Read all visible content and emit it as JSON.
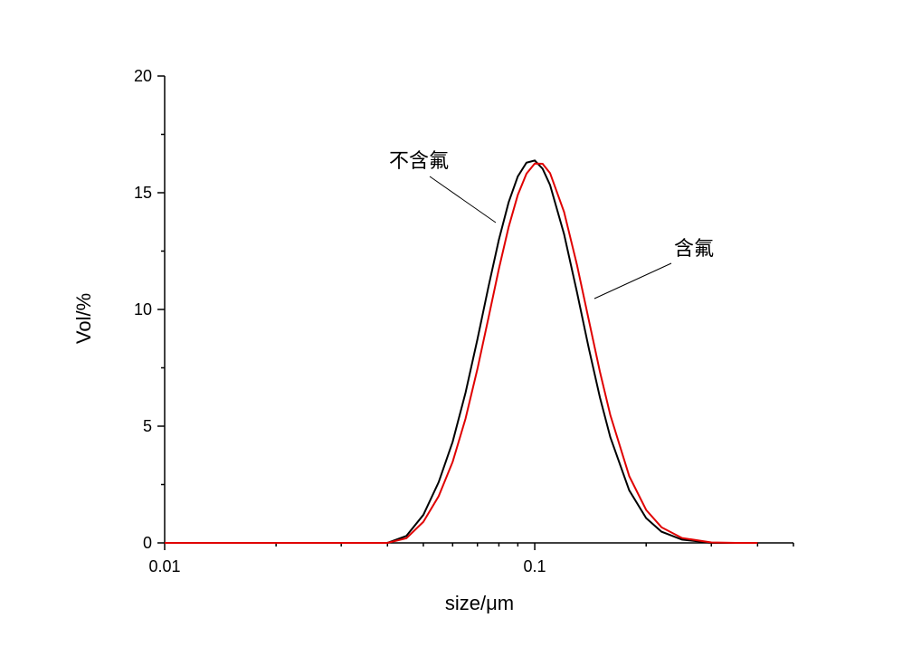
{
  "chart_data": {
    "type": "line",
    "xlabel": "size/μm",
    "ylabel": "Vol/%",
    "xscale": "log",
    "x": [
      0.01,
      0.02,
      0.03,
      0.04,
      0.045,
      0.05,
      0.055,
      0.06,
      0.065,
      0.07,
      0.075,
      0.08,
      0.085,
      0.09,
      0.095,
      0.1,
      0.105,
      0.11,
      0.12,
      0.13,
      0.14,
      0.15,
      0.16,
      0.18,
      0.2,
      0.22,
      0.25,
      0.3,
      0.35,
      0.4
    ],
    "series": [
      {
        "name": "不含氟",
        "color": "#000000",
        "values": [
          0,
          0,
          0,
          0,
          0.3,
          1.2,
          2.6,
          4.33,
          6.43,
          8.72,
          10.98,
          12.99,
          14.59,
          15.7,
          16.29,
          16.38,
          16.03,
          15.33,
          13.23,
          10.75,
          8.33,
          6.23,
          4.53,
          2.25,
          1.06,
          0.48,
          0.14,
          0,
          0,
          0
        ]
      },
      {
        "name": "含氟",
        "color": "#e00000",
        "values": [
          0,
          0,
          0,
          0,
          0.2,
          0.9,
          2.0,
          3.47,
          5.32,
          7.45,
          9.65,
          11.74,
          13.53,
          14.91,
          15.82,
          16.25,
          16.24,
          15.84,
          14.18,
          11.92,
          9.54,
          7.33,
          5.48,
          2.86,
          1.41,
          0.67,
          0.21,
          0.02,
          0,
          0
        ]
      }
    ],
    "xlim": [
      0.01,
      0.5
    ],
    "xticks": [
      0.01,
      0.1
    ],
    "xminorticks": [
      0.02,
      0.03,
      0.04,
      0.05,
      0.06,
      0.07,
      0.08,
      0.09,
      0.2,
      0.3,
      0.4,
      0.5
    ],
    "ylim": [
      0,
      20
    ],
    "yticks": [
      0,
      5,
      10,
      15,
      20
    ],
    "yminorticks": [
      2.5,
      7.5,
      12.5,
      17.5
    ],
    "grid": false
  }
}
